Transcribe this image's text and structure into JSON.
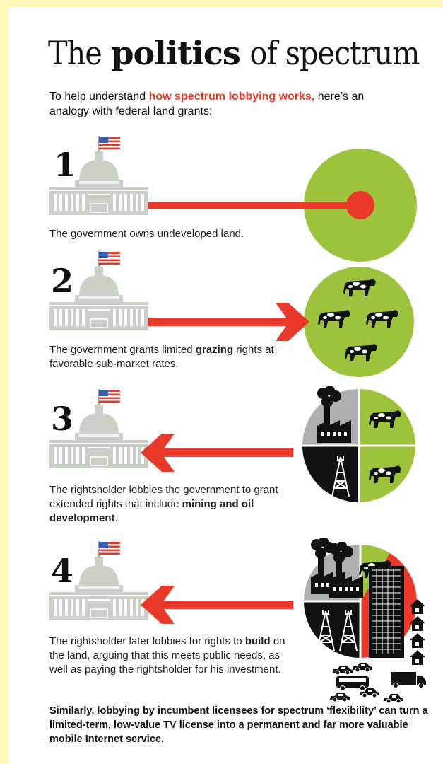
{
  "title": {
    "parts": [
      {
        "text": "The",
        "bold": false
      },
      {
        "text": "politics",
        "bold": true
      },
      {
        "text": "of spectrum",
        "bold": false
      }
    ]
  },
  "intro": {
    "parts": [
      {
        "text": "To help understand",
        "bold": false
      },
      {
        "text": "how spectrum lobbying works,",
        "bold": true,
        "highlight": true
      },
      {
        "text": "here’s an analogy with federal land grants:",
        "bold": false
      }
    ]
  },
  "steps": [
    {
      "number": "1",
      "parts": [
        {
          "text": "The government owns undeveloped land.",
          "bold": false
        }
      ]
    },
    {
      "number": "2",
      "parts": [
        {
          "text": "The government grants limited",
          "bold": false
        },
        {
          "text": "grazing",
          "bold": true
        },
        {
          "text": "rights at favorable sub-market rates.",
          "bold": false
        }
      ]
    },
    {
      "number": "3",
      "parts": [
        {
          "text": "The rightsholder lobbies the government to grant extended rights that include",
          "bold": false
        },
        {
          "text": "mining and oil development",
          "bold": true
        },
        {
          "text": ".",
          "bold": false
        }
      ]
    },
    {
      "number": "4",
      "parts": [
        {
          "text": "The rightsholder later lobbies for rights to",
          "bold": false
        },
        {
          "text": "build",
          "bold": true
        },
        {
          "text": "on the land, arguing that this meets public needs, as well as paying the rightsholder for his investment.",
          "bold": false
        }
      ]
    }
  ],
  "footer": {
    "text": "Similarly, lobbying by incumbent licensees for spectrum ‘flexibility’ can turn a limited-term, low-value TV license into a permanent and far more valuable mobile Internet service."
  }
}
